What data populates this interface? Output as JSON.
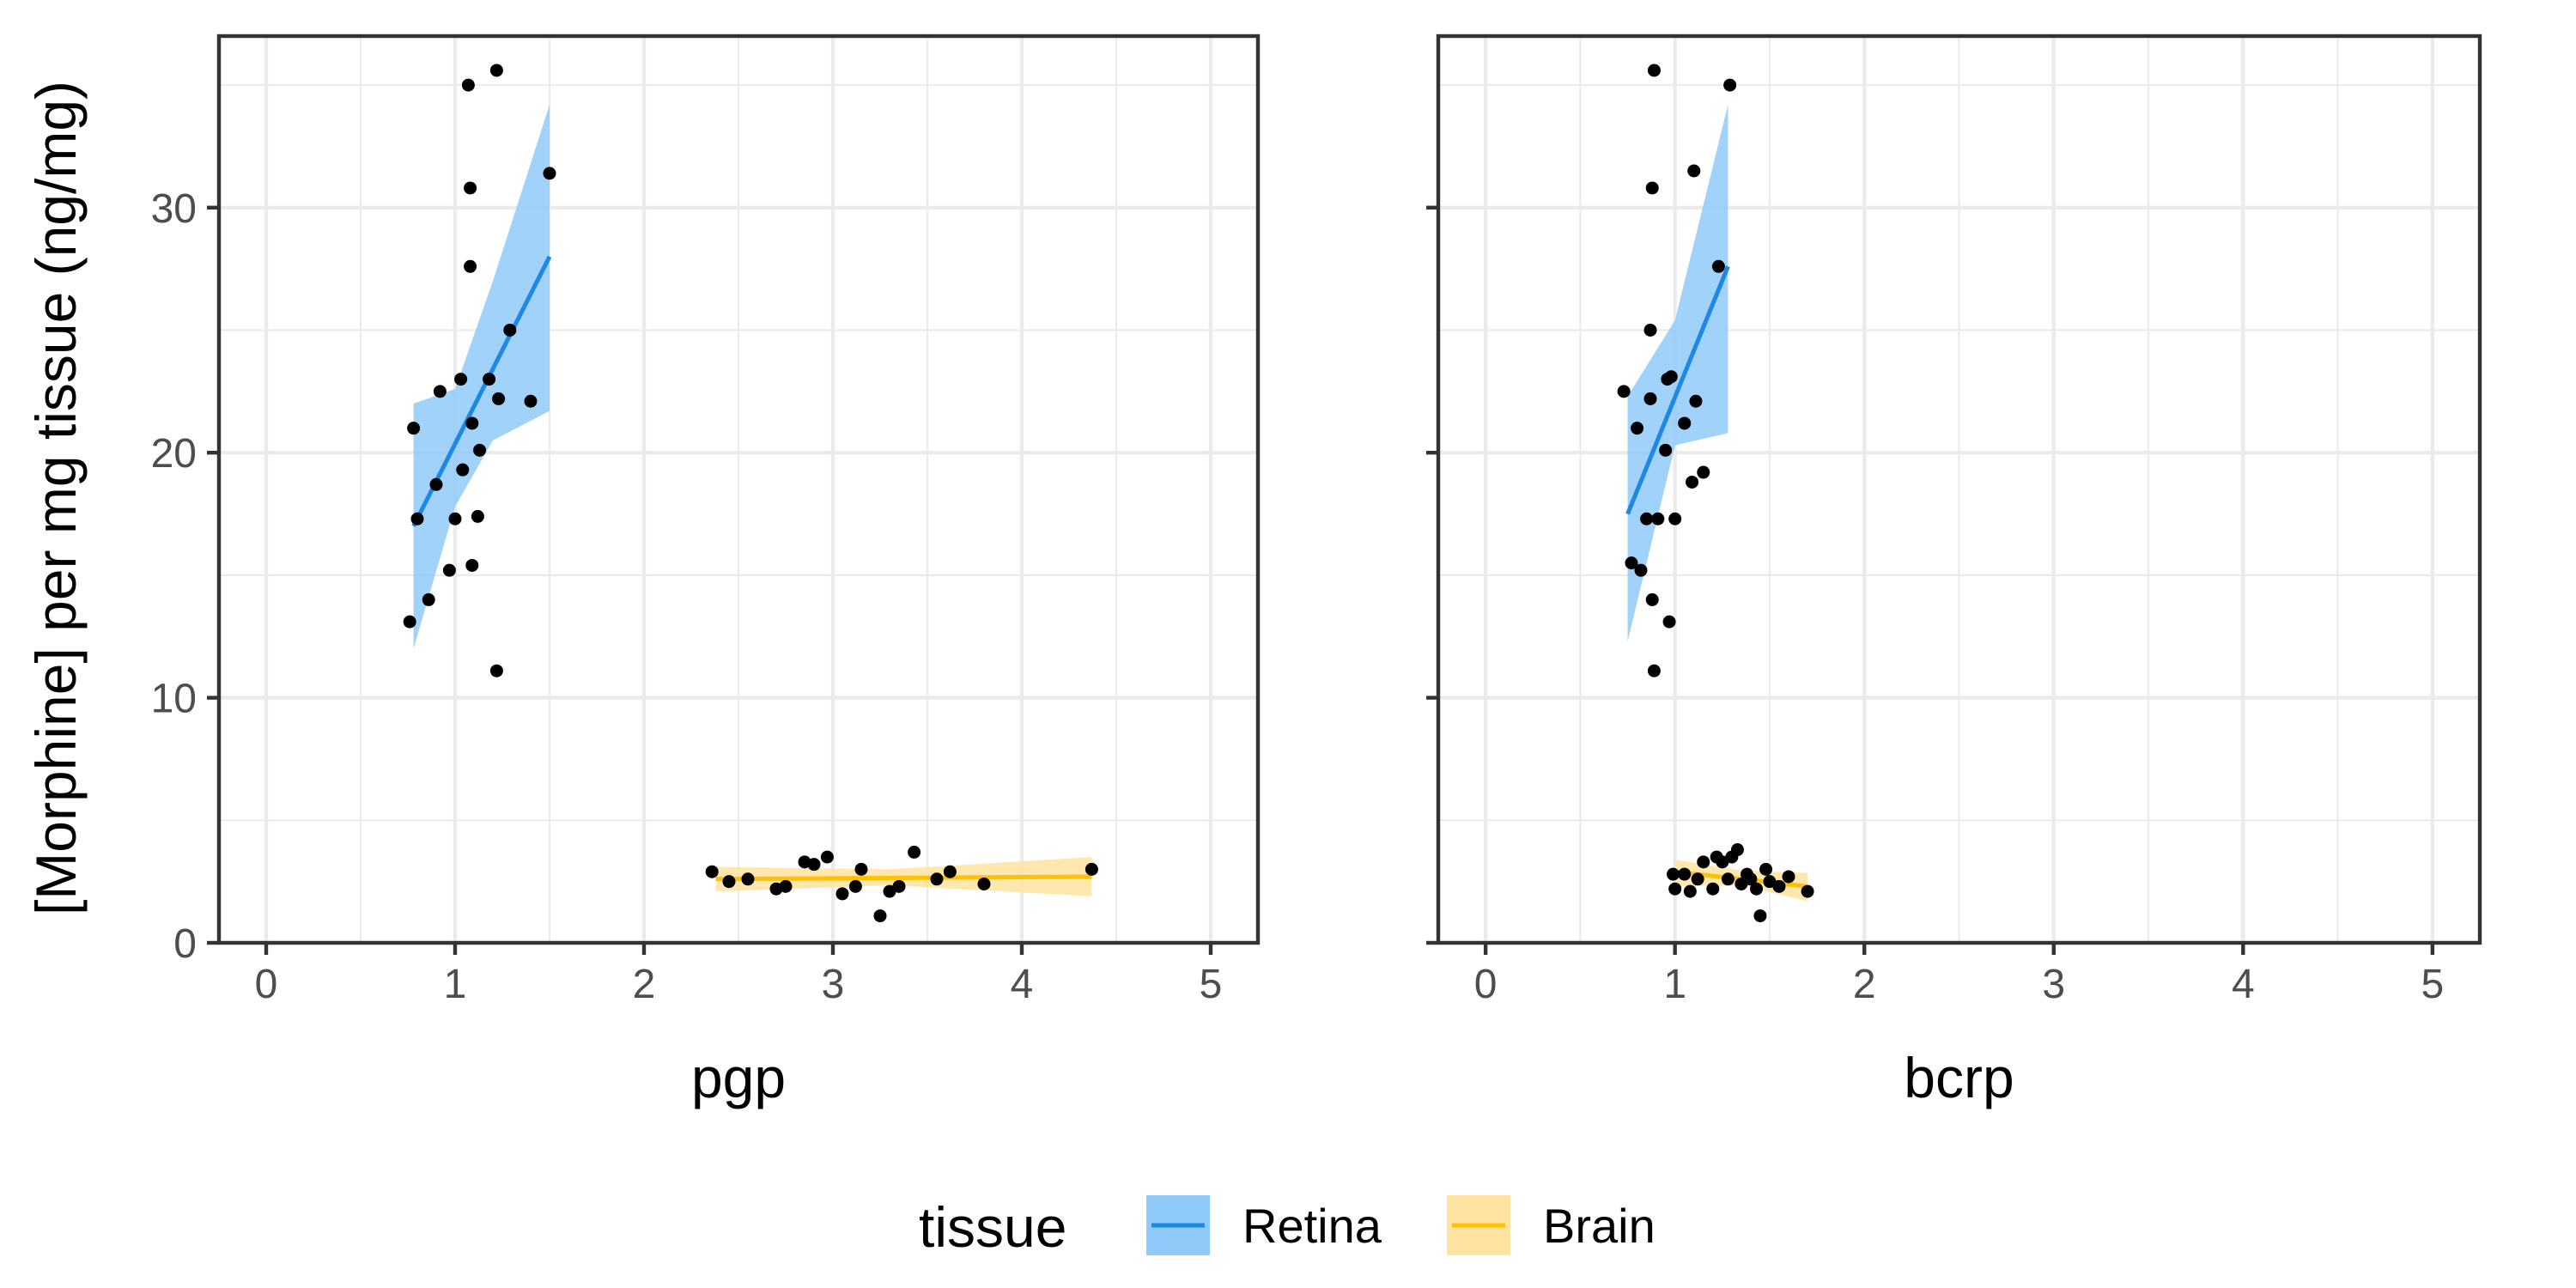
{
  "chart_data": {
    "type": "scatter",
    "ylabel": "[Morphine] per mg tissue (ng/mg)",
    "ylim": [
      0,
      37
    ],
    "y_ticks": [
      "0",
      "10",
      "20",
      "30"
    ],
    "x_ticks": [
      "0",
      "1",
      "2",
      "3",
      "4",
      "5"
    ],
    "xlim": [
      -0.25,
      5.25
    ],
    "grid": true,
    "smoother": "linear regression with confidence band",
    "legend": {
      "title": "tissue",
      "position": "bottom",
      "entries": [
        {
          "label": "Retina",
          "color": "#1E88E5",
          "fill": "#90CAF9"
        },
        {
          "label": "Brain",
          "color": "#FFC107",
          "fill": "#FFE3A0"
        }
      ]
    },
    "panels": [
      {
        "xlabel": "pgp",
        "series": [
          {
            "name": "Retina",
            "points": [
              [
                0.76,
                13.1
              ],
              [
                0.78,
                21.0
              ],
              [
                0.8,
                17.3
              ],
              [
                0.86,
                14.0
              ],
              [
                0.9,
                18.7
              ],
              [
                0.92,
                22.5
              ],
              [
                0.97,
                15.2
              ],
              [
                1.0,
                17.3
              ],
              [
                1.03,
                23.0
              ],
              [
                1.04,
                19.3
              ],
              [
                1.07,
                35.0
              ],
              [
                1.08,
                30.8
              ],
              [
                1.08,
                27.6
              ],
              [
                1.09,
                21.2
              ],
              [
                1.09,
                15.4
              ],
              [
                1.12,
                17.4
              ],
              [
                1.13,
                20.1
              ],
              [
                1.18,
                23.0
              ],
              [
                1.22,
                35.6
              ],
              [
                1.22,
                11.1
              ],
              [
                1.23,
                22.2
              ],
              [
                1.29,
                25.0
              ],
              [
                1.4,
                22.1
              ],
              [
                1.5,
                31.4
              ]
            ],
            "fit": {
              "x": [
                0.78,
                1.5
              ],
              "y": [
                17.0,
                28.0
              ]
            },
            "band": {
              "x": [
                0.78,
                1.0,
                1.2,
                1.5
              ],
              "lower": [
                12.0,
                17.8,
                20.5,
                21.7
              ],
              "upper": [
                22.0,
                22.6,
                27.0,
                34.2
              ]
            }
          },
          {
            "name": "Brain",
            "points": [
              [
                2.36,
                2.9
              ],
              [
                2.45,
                2.5
              ],
              [
                2.55,
                2.6
              ],
              [
                2.7,
                2.2
              ],
              [
                2.75,
                2.3
              ],
              [
                2.85,
                3.3
              ],
              [
                2.9,
                3.2
              ],
              [
                2.97,
                3.5
              ],
              [
                3.05,
                2.0
              ],
              [
                3.12,
                2.3
              ],
              [
                3.15,
                3.0
              ],
              [
                3.25,
                1.1
              ],
              [
                3.3,
                2.1
              ],
              [
                3.35,
                2.3
              ],
              [
                3.43,
                3.7
              ],
              [
                3.55,
                2.6
              ],
              [
                3.62,
                2.9
              ],
              [
                3.8,
                2.4
              ],
              [
                4.37,
                3.0
              ]
            ],
            "fit": {
              "x": [
                2.38,
                4.37
              ],
              "y": [
                2.6,
                2.7
              ]
            },
            "band": {
              "x": [
                2.38,
                3.3,
                4.37
              ],
              "lower": [
                2.1,
                2.35,
                1.9
              ],
              "upper": [
                3.1,
                3.0,
                3.5
              ]
            }
          }
        ]
      },
      {
        "xlabel": "bcrp",
        "series": [
          {
            "name": "Retina",
            "points": [
              [
                0.73,
                22.5
              ],
              [
                0.77,
                15.5
              ],
              [
                0.8,
                21.0
              ],
              [
                0.82,
                15.2
              ],
              [
                0.85,
                17.3
              ],
              [
                0.87,
                22.2
              ],
              [
                0.87,
                25.0
              ],
              [
                0.88,
                30.8
              ],
              [
                0.88,
                14.0
              ],
              [
                0.89,
                35.6
              ],
              [
                0.89,
                11.1
              ],
              [
                0.91,
                17.3
              ],
              [
                0.95,
                20.1
              ],
              [
                0.96,
                23.0
              ],
              [
                0.97,
                13.1
              ],
              [
                0.98,
                23.1
              ],
              [
                1.0,
                17.3
              ],
              [
                1.05,
                21.2
              ],
              [
                1.09,
                18.8
              ],
              [
                1.1,
                31.5
              ],
              [
                1.11,
                22.1
              ],
              [
                1.15,
                19.2
              ],
              [
                1.23,
                27.6
              ],
              [
                1.29,
                35.0
              ]
            ],
            "fit": {
              "x": [
                0.75,
                1.28
              ],
              "y": [
                17.5,
                27.6
              ]
            },
            "band": {
              "x": [
                0.75,
                1.0,
                1.28
              ],
              "lower": [
                12.3,
                20.3,
                20.8
              ],
              "upper": [
                22.3,
                25.4,
                34.2
              ]
            }
          },
          {
            "name": "Brain",
            "points": [
              [
                0.99,
                2.8
              ],
              [
                1.0,
                2.2
              ],
              [
                1.05,
                2.8
              ],
              [
                1.08,
                2.1
              ],
              [
                1.12,
                2.6
              ],
              [
                1.15,
                3.3
              ],
              [
                1.2,
                2.2
              ],
              [
                1.22,
                3.5
              ],
              [
                1.25,
                3.3
              ],
              [
                1.28,
                2.6
              ],
              [
                1.3,
                3.5
              ],
              [
                1.33,
                3.8
              ],
              [
                1.35,
                2.4
              ],
              [
                1.38,
                2.8
              ],
              [
                1.4,
                2.6
              ],
              [
                1.43,
                2.2
              ],
              [
                1.45,
                1.1
              ],
              [
                1.48,
                3.0
              ],
              [
                1.5,
                2.5
              ],
              [
                1.55,
                2.3
              ],
              [
                1.6,
                2.7
              ],
              [
                1.7,
                2.1
              ]
            ],
            "fit": {
              "x": [
                1.0,
                1.7
              ],
              "y": [
                2.9,
                2.3
              ]
            },
            "band": {
              "x": [
                1.0,
                1.35,
                1.7
              ],
              "lower": [
                2.3,
                2.35,
                1.7
              ],
              "upper": [
                3.4,
                2.95,
                2.85
              ]
            }
          }
        ]
      }
    ]
  }
}
